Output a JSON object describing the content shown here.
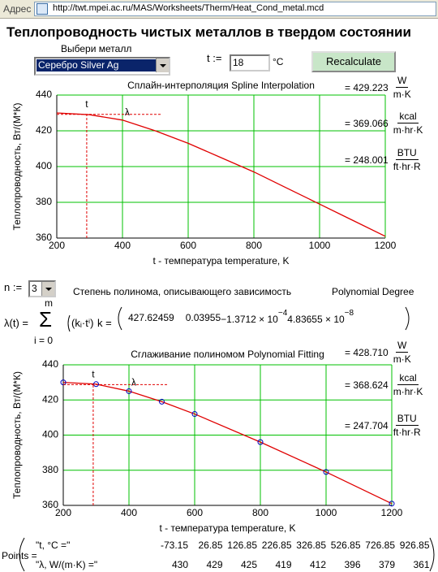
{
  "address_bar": {
    "label": "Адрес",
    "url": "http://twt.mpei.ac.ru/MAS/Worksheets/Therm/Heat_Cond_metal.mcd"
  },
  "header": {
    "title": "Теплопроводность чистых металлов в твердом состоянии"
  },
  "controls": {
    "metal_label": "Выбери металл",
    "metal": "Серебро Silver Ag",
    "t_label": "t :=",
    "t_value": "18",
    "t_unit": "°C",
    "button": "Recalculate",
    "n_label": "n :=",
    "n_value": "3",
    "degree_text": "Степень полинома, описывающего зависимость",
    "degree_text_en": "Polynomial Degree"
  },
  "polynomial": {
    "lhs": "λ(t) =",
    "upper": "m",
    "sum_symbol": "Σ",
    "lower": "i = 0",
    "term": "(kᵢ·tⁱ)",
    "k_label": "k =",
    "coefficients": [
      {
        "text": "427.62459"
      },
      {
        "text": "0.03955"
      },
      {
        "text": "−1.3712 × 10",
        "exp": "−4"
      },
      {
        "text": "4.83655 × 10",
        "exp": "−8"
      }
    ]
  },
  "chart_data": [
    {
      "type": "line",
      "title": "Сплайн-интерполяция Spline Interpolation",
      "x_label": "t - температура temperature, K",
      "y_label": "Теплопроводность, Вт/(М*К)",
      "x": [
        200,
        300,
        400,
        500,
        600,
        700,
        800,
        900,
        1000,
        1100,
        1200
      ],
      "series": [
        {
          "color": "#e00000",
          "values": [
            430,
            429,
            426,
            420,
            413,
            405,
            397,
            388,
            379,
            370,
            361
          ]
        }
      ],
      "xlim": [
        200,
        1200
      ],
      "ylim": [
        360,
        440
      ],
      "xticks": [
        200,
        400,
        600,
        800,
        1000,
        1200
      ],
      "yticks": [
        360,
        380,
        400,
        420,
        440
      ],
      "grid": true,
      "cursor": {
        "x": 291.15,
        "y": 429.223,
        "x_label": "t",
        "y_label": "λ"
      },
      "readouts": [
        {
          "value": "= 429.223",
          "num": "W",
          "den": "m·K"
        },
        {
          "value": "= 369.066",
          "num": "kcal",
          "den": "m·hr·K"
        },
        {
          "value": "= 248.001",
          "num": "BTU",
          "den": "ft·hr·R"
        }
      ]
    },
    {
      "type": "line",
      "title": "Сглаживание полиномом Polynomial Fitting",
      "x_label": "t - температура temperature, K",
      "y_label": "Теплопроводность, Вт/(М*К)",
      "x": [
        200,
        300,
        400,
        500,
        600,
        800,
        1000,
        1200
      ],
      "series": [
        {
          "color": "#e00000",
          "marker_color": "#0000c0",
          "values": [
            430,
            429,
            425,
            419,
            412,
            396,
            379,
            361
          ]
        }
      ],
      "xlim": [
        200,
        1200
      ],
      "ylim": [
        360,
        440
      ],
      "xticks": [
        200,
        400,
        600,
        800,
        1000,
        1200
      ],
      "yticks": [
        360,
        380,
        400,
        420,
        440
      ],
      "grid": true,
      "cursor": {
        "x": 291.15,
        "y": 428.71,
        "x_label": "t",
        "y_label": "λ"
      },
      "readouts": [
        {
          "value": "= 428.710",
          "num": "W",
          "den": "m·K"
        },
        {
          "value": "= 368.624",
          "num": "kcal",
          "den": "m·hr·K"
        },
        {
          "value": "= 247.704",
          "num": "BTU",
          "den": "ft·hr·R"
        }
      ]
    }
  ],
  "points": {
    "label": "Points =",
    "row_labels": [
      "\"t, °C =\"",
      "\"λ, W/(m·K) =\""
    ],
    "t": [
      -73.15,
      26.85,
      126.85,
      226.85,
      326.85,
      526.85,
      726.85,
      926.85
    ],
    "lambda": [
      430,
      429,
      425,
      419,
      412,
      396,
      379,
      361
    ]
  }
}
